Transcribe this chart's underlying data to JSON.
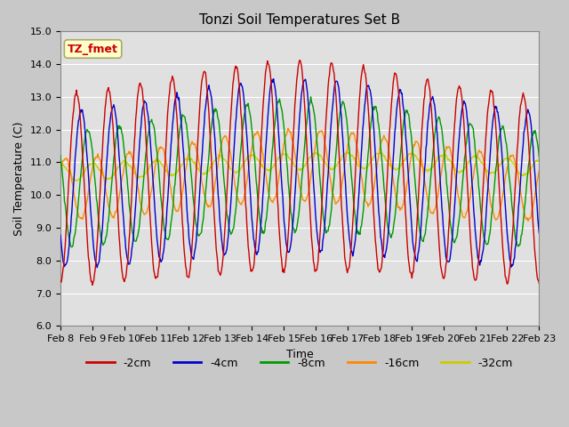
{
  "title": "Tonzi Soil Temperatures Set B",
  "xlabel": "Time",
  "ylabel": "Soil Temperature (C)",
  "ylim": [
    6.0,
    15.0
  ],
  "yticks": [
    6.0,
    7.0,
    8.0,
    9.0,
    10.0,
    11.0,
    12.0,
    13.0,
    14.0,
    15.0
  ],
  "line_colors": {
    "-2cm": "#cc0000",
    "-4cm": "#0000cc",
    "-8cm": "#009900",
    "-16cm": "#ff8800",
    "-32cm": "#cccc00"
  },
  "legend_labels": [
    "-2cm",
    "-4cm",
    "-8cm",
    "-16cm",
    "-32cm"
  ],
  "annotation_text": "TZ_fmet",
  "annotation_color": "#cc0000",
  "annotation_bg": "#ffffcc",
  "annotation_border": "#aaaa66",
  "fig_facecolor": "#c8c8c8",
  "plot_bg_color": "#e0e0e0",
  "title_fontsize": 11,
  "label_fontsize": 9,
  "tick_fontsize": 8,
  "n_days": 15,
  "start_day": 8,
  "points_per_day": 48,
  "linewidth": 1.0
}
